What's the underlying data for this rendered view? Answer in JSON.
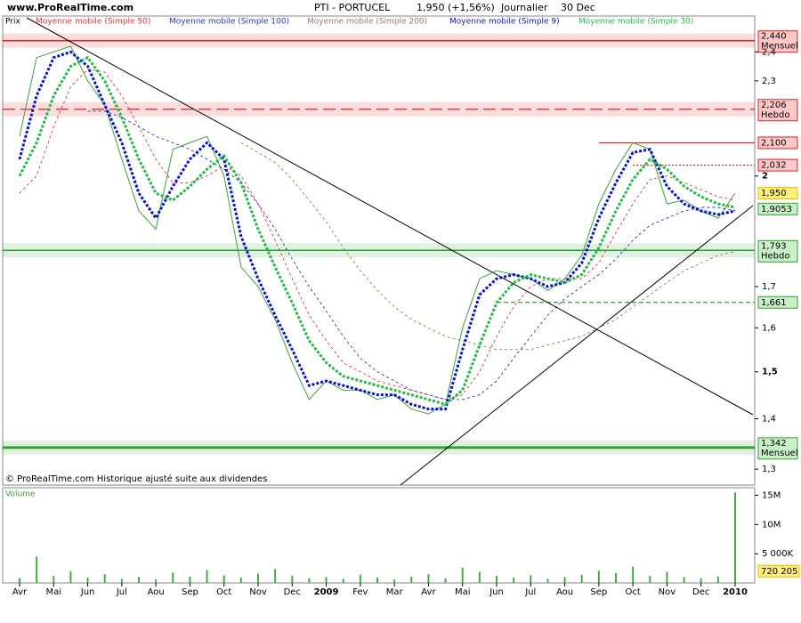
{
  "header": {
    "site": "www.ProRealTime.com",
    "symbol": "PTI - PORTUCEL",
    "quote": "1,950 (+1,56%)",
    "period": "Journalier",
    "date": "30 Dec"
  },
  "footnote": "© ProRealTime.com Historique ajusté suite aux dividendes",
  "chart_data": [
    {
      "type": "line",
      "log_scale": true,
      "categories": [
        "Avr",
        null,
        "Mai",
        null,
        "Jun",
        null,
        "Jul",
        null,
        "Aou",
        null,
        "Sep",
        null,
        "Oct",
        null,
        "Nov",
        null,
        "Dec",
        null,
        "2009",
        null,
        "Fev",
        null,
        "Mar",
        null,
        "Avr",
        null,
        "Mai",
        null,
        "Jun",
        null,
        "Jul",
        null,
        "Aou",
        null,
        "Sep",
        null,
        "Oct",
        null,
        "Nov",
        null,
        "Dec",
        null,
        "2010"
      ],
      "bold_categories": [
        "2009",
        "2010"
      ],
      "ylim": [
        1.27,
        2.53
      ],
      "yticks": [
        {
          "value": 2.4,
          "label": "2,4"
        },
        {
          "value": 2.3,
          "label": "2,3"
        },
        2,
        {
          "value": 1.7,
          "label": "1,7"
        },
        {
          "value": 1.6,
          "label": "1,6"
        },
        {
          "value": 1.5,
          "label": "1,5"
        },
        {
          "value": 1.4,
          "label": "1,4"
        },
        {
          "value": 1.3,
          "label": "1,3"
        }
      ],
      "series": [
        {
          "name": "Prix",
          "color": "#3aa03a",
          "style": "solid",
          "values": [
            2.12,
            2.38,
            2.4,
            2.42,
            2.3,
            2.22,
            2.05,
            1.9,
            1.85,
            2.08,
            2.1,
            2.12,
            2.0,
            1.75,
            1.7,
            1.62,
            1.52,
            1.44,
            1.48,
            1.46,
            1.46,
            1.44,
            1.45,
            1.42,
            1.41,
            1.43,
            1.6,
            1.72,
            1.74,
            1.73,
            1.72,
            1.69,
            1.72,
            1.78,
            1.92,
            2.02,
            2.1,
            2.08,
            1.92,
            1.93,
            1.9,
            1.88,
            1.95
          ]
        },
        {
          "name": "Moyenne mobile (Simple 50)",
          "color": "#dd3333",
          "style": "dashed",
          "values": [
            1.95,
            2.0,
            2.15,
            2.28,
            2.34,
            2.33,
            2.25,
            2.15,
            2.05,
            1.98,
            1.98,
            2.0,
            2.03,
            2.0,
            1.92,
            1.82,
            1.72,
            1.63,
            1.57,
            1.52,
            1.5,
            1.48,
            1.47,
            1.46,
            1.45,
            1.44,
            1.45,
            1.5,
            1.58,
            1.65,
            1.7,
            1.72,
            1.72,
            1.72,
            1.76,
            1.84,
            1.92,
            1.99,
            2.0,
            1.98,
            1.96,
            1.94,
            1.93
          ]
        },
        {
          "name": "Moyenne mobile (Simple 100)",
          "color": "#2233cc",
          "style": "dashed",
          "values": [
            null,
            null,
            null,
            null,
            2.2,
            2.2,
            2.18,
            2.15,
            2.12,
            2.1,
            2.08,
            2.05,
            2.02,
            1.98,
            1.92,
            1.85,
            1.77,
            1.7,
            1.64,
            1.58,
            1.53,
            1.5,
            1.48,
            1.46,
            1.45,
            1.44,
            1.44,
            1.45,
            1.48,
            1.53,
            1.58,
            1.63,
            1.67,
            1.7,
            1.73,
            1.77,
            1.82,
            1.86,
            1.88,
            1.9,
            1.91,
            1.91,
            1.9
          ]
        },
        {
          "name": "Moyenne mobile (Simple 200)",
          "color": "#997766",
          "style": "dashed",
          "values": [
            null,
            null,
            null,
            null,
            null,
            null,
            null,
            null,
            null,
            null,
            null,
            null,
            null,
            2.1,
            2.07,
            2.04,
            1.99,
            1.93,
            1.87,
            1.8,
            1.74,
            1.69,
            1.65,
            1.62,
            1.6,
            1.58,
            1.57,
            1.56,
            1.55,
            1.55,
            1.55,
            1.56,
            1.57,
            1.58,
            1.6,
            1.62,
            1.65,
            1.68,
            1.71,
            1.74,
            1.76,
            1.78,
            1.79
          ]
        },
        {
          "name": "Moyenne mobile (Simple 9)",
          "color": "#0a14c8",
          "style": "dotted",
          "values": [
            2.05,
            2.25,
            2.38,
            2.4,
            2.35,
            2.22,
            2.1,
            1.95,
            1.88,
            1.97,
            2.05,
            2.1,
            2.05,
            1.83,
            1.72,
            1.63,
            1.55,
            1.47,
            1.48,
            1.47,
            1.46,
            1.45,
            1.45,
            1.43,
            1.42,
            1.42,
            1.55,
            1.68,
            1.72,
            1.73,
            1.72,
            1.7,
            1.71,
            1.76,
            1.88,
            1.98,
            2.07,
            2.08,
            1.97,
            1.92,
            1.9,
            1.89,
            1.9
          ]
        },
        {
          "name": "Moyenne mobile (Simple 30)",
          "color": "#22bb44",
          "style": "dotted",
          "values": [
            2.0,
            2.1,
            2.25,
            2.35,
            2.38,
            2.3,
            2.18,
            2.05,
            1.95,
            1.93,
            1.97,
            2.02,
            2.06,
            1.98,
            1.85,
            1.75,
            1.66,
            1.57,
            1.52,
            1.49,
            1.48,
            1.47,
            1.46,
            1.45,
            1.44,
            1.43,
            1.46,
            1.56,
            1.66,
            1.71,
            1.73,
            1.72,
            1.71,
            1.73,
            1.8,
            1.9,
            1.99,
            2.05,
            2.02,
            1.97,
            1.94,
            1.92,
            1.91
          ]
        }
      ],
      "levels": [
        {
          "value": 2.44,
          "label": "2,440",
          "note": "Mensuel",
          "color": "#e02020",
          "style": "band"
        },
        {
          "value": 2.206,
          "label": "2,206",
          "note": "Hebdo",
          "color": "#e02020",
          "style": "dashed-band"
        },
        {
          "value": 2.1,
          "label": "2,100",
          "color": "#e02020",
          "style": "solid",
          "from": "Sep"
        },
        {
          "value": 2.032,
          "label": "2,032",
          "color": "#e02020",
          "style": "dotted",
          "from": "Oct"
        },
        {
          "value": 1.95,
          "label": "1,950",
          "color": "#e8c000",
          "style": "box"
        },
        {
          "value": 1.9053,
          "label": "1,9053",
          "color": "#30a030",
          "style": "box"
        },
        {
          "value": 1.793,
          "label": "1,793",
          "note": "Hebdo",
          "color": "#30a030",
          "style": "band"
        },
        {
          "value": 1.661,
          "label": "1,661",
          "color": "#30a030",
          "style": "dashed",
          "from": "Jun"
        },
        {
          "value": 1.342,
          "label": "1,342",
          "note": "Mensuel",
          "color": "#30a030",
          "style": "thick-band"
        }
      ]
    },
    {
      "type": "bar",
      "title": "Volume",
      "color": "#44aa44",
      "ylim": [
        0,
        16000000
      ],
      "yticks": [
        {
          "value": 15000000,
          "label": "15M"
        },
        {
          "value": 10000000,
          "label": "10M"
        },
        {
          "value": 5000000,
          "label": "5 000K"
        }
      ],
      "last": {
        "value": 720205,
        "label": "720 205"
      },
      "values": [
        800000,
        4500000,
        1200000,
        2000000,
        900000,
        1500000,
        700000,
        1000000,
        600000,
        1800000,
        1100000,
        2200000,
        1300000,
        900000,
        1600000,
        2400000,
        1200000,
        800000,
        1000000,
        700000,
        1400000,
        900000,
        600000,
        1100000,
        1500000,
        800000,
        2600000,
        1900000,
        1200000,
        900000,
        1300000,
        700000,
        1000000,
        1400000,
        2100000,
        1700000,
        2800000,
        1200000,
        1900000,
        1000000,
        800000,
        1100000,
        15500000
      ]
    }
  ]
}
